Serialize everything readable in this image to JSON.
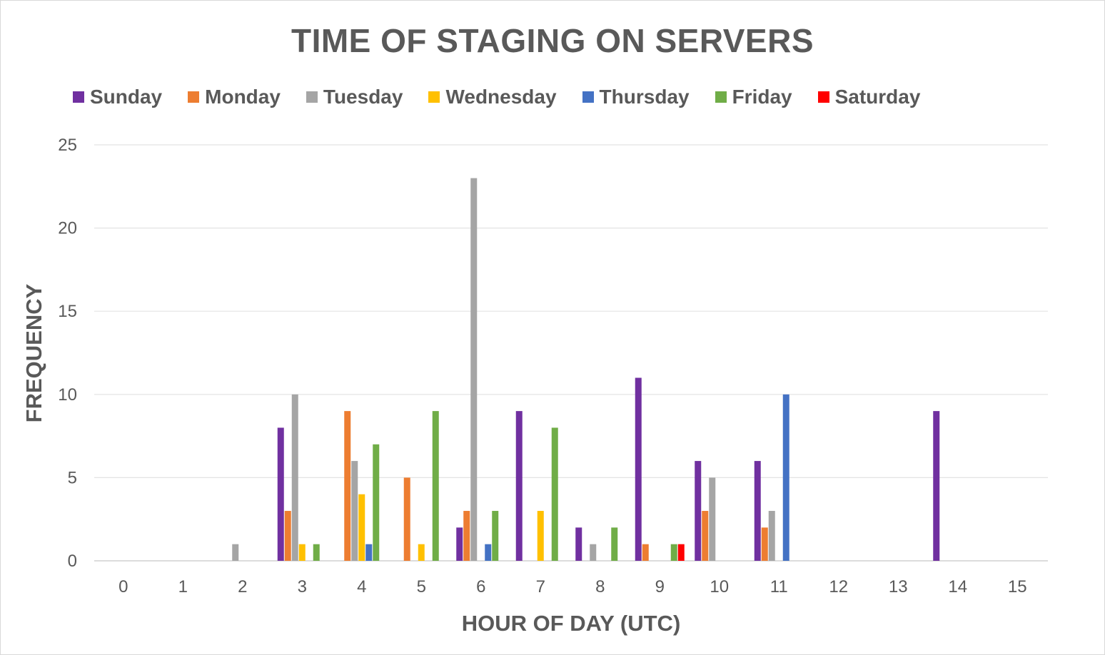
{
  "chart_data": {
    "type": "bar",
    "title": "TIME OF STAGING ON SERVERS",
    "xlabel": "HOUR OF DAY (UTC)",
    "ylabel": "FREQUENCY",
    "ylim": [
      0,
      25
    ],
    "yticks": [
      "0",
      "5",
      "10",
      "15",
      "20",
      "25"
    ],
    "categories": [
      "0",
      "1",
      "2",
      "3",
      "4",
      "5",
      "6",
      "7",
      "8",
      "9",
      "10",
      "11",
      "12",
      "13",
      "14",
      "15"
    ],
    "legend_position": "top",
    "grid": true,
    "series": [
      {
        "name": "Sunday",
        "color": "#7030a0",
        "values": [
          0,
          0,
          0,
          8,
          0,
          0,
          2,
          9,
          2,
          11,
          6,
          6,
          0,
          0,
          9,
          0
        ]
      },
      {
        "name": "Monday",
        "color": "#ed7d31",
        "values": [
          0,
          0,
          0,
          3,
          9,
          5,
          3,
          0,
          0,
          1,
          3,
          2,
          0,
          0,
          0,
          0
        ]
      },
      {
        "name": "Tuesday",
        "color": "#a5a5a5",
        "values": [
          0,
          0,
          1,
          10,
          6,
          0,
          23,
          0,
          1,
          0,
          5,
          3,
          0,
          0,
          0,
          0
        ]
      },
      {
        "name": "Wednesday",
        "color": "#ffc000",
        "values": [
          0,
          0,
          0,
          1,
          4,
          1,
          0,
          3,
          0,
          0,
          0,
          0,
          0,
          0,
          0,
          0
        ]
      },
      {
        "name": "Thursday",
        "color": "#4472c4",
        "values": [
          0,
          0,
          0,
          0,
          1,
          0,
          1,
          0,
          0,
          0,
          0,
          10,
          0,
          0,
          0,
          0
        ]
      },
      {
        "name": "Friday",
        "color": "#70ad47",
        "values": [
          0,
          0,
          0,
          1,
          7,
          9,
          3,
          8,
          2,
          1,
          0,
          0,
          0,
          0,
          0,
          0
        ]
      },
      {
        "name": "Saturday",
        "color": "#ff0000",
        "values": [
          0,
          0,
          0,
          0,
          0,
          0,
          0,
          0,
          0,
          1,
          0,
          0,
          0,
          0,
          0,
          0
        ]
      }
    ]
  }
}
